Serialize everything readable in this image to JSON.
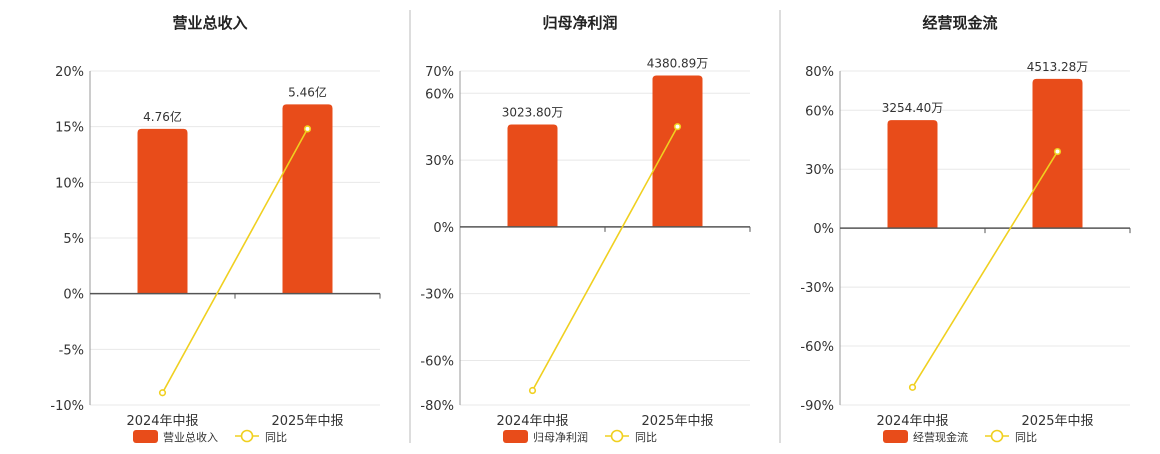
{
  "colors": {
    "bar": "#e84c1a",
    "line": "#f0d020",
    "axis": "#555555",
    "grid": "#e8e8e8",
    "divider": "#bbbbbb",
    "text": "#333333"
  },
  "chart_data": [
    {
      "type": "bar",
      "title": "营业总收入",
      "categories": [
        "2024年中报",
        "2025年中报"
      ],
      "bar_series_name": "营业总收入",
      "bar_labels": [
        "4.76亿",
        "5.46亿"
      ],
      "bar_values": [
        14.8,
        17.0
      ],
      "line_series_name": "同比",
      "line_values": [
        -8.9,
        14.8
      ],
      "y_ticks": [
        20,
        15,
        10,
        5,
        0,
        -5,
        -10
      ],
      "ylim": [
        -10,
        20
      ],
      "y_unit": "%",
      "grid": true,
      "legend": "bottom-center"
    },
    {
      "type": "bar",
      "title": "归母净利润",
      "categories": [
        "2024年中报",
        "2025年中报"
      ],
      "bar_series_name": "归母净利润",
      "bar_labels": [
        "3023.80万",
        "4380.89万"
      ],
      "bar_values": [
        46,
        68
      ],
      "line_series_name": "同比",
      "line_values": [
        -73.5,
        45.0
      ],
      "y_ticks": [
        70,
        60,
        30,
        0,
        -30,
        -60,
        -80
      ],
      "ylim": [
        -80,
        70
      ],
      "y_unit": "%",
      "grid": true,
      "legend": "bottom-center"
    },
    {
      "type": "bar",
      "title": "经营现金流",
      "categories": [
        "2024年中报",
        "2025年中报"
      ],
      "bar_series_name": "经营现金流",
      "bar_labels": [
        "3254.40万",
        "4513.28万"
      ],
      "bar_values": [
        55,
        76
      ],
      "line_series_name": "同比",
      "line_values": [
        -81,
        39
      ],
      "y_ticks": [
        80,
        60,
        30,
        0,
        -30,
        -60,
        -90
      ],
      "ylim": [
        -90,
        80
      ],
      "y_unit": "%",
      "grid": true,
      "legend": "bottom-center"
    }
  ]
}
